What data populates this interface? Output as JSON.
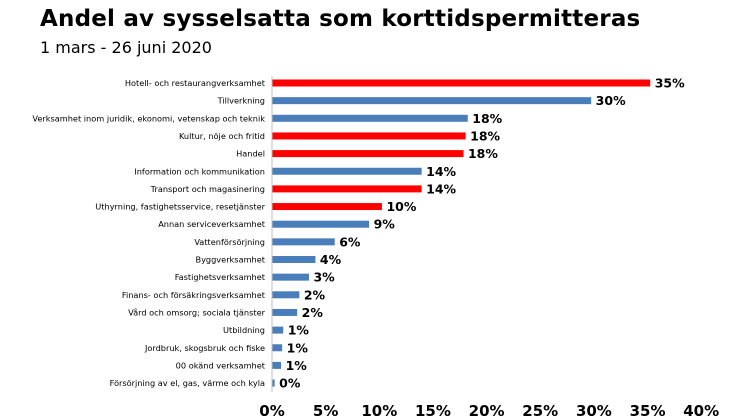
{
  "chart_data": {
    "type": "bar",
    "orientation": "horizontal",
    "title": "Andel av sysselsatta som korttidspermitteras",
    "subtitle": "1 mars - 26 juni 2020",
    "xlabel": "",
    "ylabel": "",
    "xlim": [
      0,
      40
    ],
    "xticks": [
      "0%",
      "5%",
      "10%",
      "15%",
      "20%",
      "25%",
      "30%",
      "35%",
      "40%"
    ],
    "grid": false,
    "colors": {
      "highlight": "#ff0000",
      "normal": "#4a7ebb"
    },
    "bars": [
      {
        "category": "Hotell- och restaurangverksamhet",
        "value": 35.2,
        "label": "35%",
        "highlight": true
      },
      {
        "category": "Tillverkning",
        "value": 29.7,
        "label": "30%",
        "highlight": false
      },
      {
        "category": "Verksamhet inom juridik, ekonomi, vetenskap och teknik",
        "value": 18.2,
        "label": "18%",
        "highlight": false
      },
      {
        "category": "Kultur, nöje och fritid",
        "value": 18.0,
        "label": "18%",
        "highlight": true
      },
      {
        "category": "Handel",
        "value": 17.8,
        "label": "18%",
        "highlight": true
      },
      {
        "category": "Information och kommunikation",
        "value": 13.9,
        "label": "14%",
        "highlight": false
      },
      {
        "category": "Transport och magasinering",
        "value": 13.9,
        "label": "14%",
        "highlight": true
      },
      {
        "category": "Uthyrning, fastighetsservice, resetjänster",
        "value": 10.2,
        "label": "10%",
        "highlight": true
      },
      {
        "category": "Annan serviceverksamhet",
        "value": 9.0,
        "label": "9%",
        "highlight": false
      },
      {
        "category": "Vattenförsörjning",
        "value": 5.8,
        "label": "6%",
        "highlight": false
      },
      {
        "category": "Byggverksamhet",
        "value": 4.0,
        "label": "4%",
        "highlight": false
      },
      {
        "category": "Fastighetsverksamhet",
        "value": 3.4,
        "label": "3%",
        "highlight": false
      },
      {
        "category": "Finans- och försäkringsverksamhet",
        "value": 2.5,
        "label": "2%",
        "highlight": false
      },
      {
        "category": "Vård och omsorg; sociala tjänster",
        "value": 2.3,
        "label": "2%",
        "highlight": false
      },
      {
        "category": "Utbildning",
        "value": 1.0,
        "label": "1%",
        "highlight": false
      },
      {
        "category": "Jordbruk, skogsbruk och fiske",
        "value": 0.9,
        "label": "1%",
        "highlight": false
      },
      {
        "category": "00 okänd verksamhet",
        "value": 0.8,
        "label": "1%",
        "highlight": false
      },
      {
        "category": "Försörjning av el, gas, värme och kyla",
        "value": 0.2,
        "label": "0%",
        "highlight": false
      }
    ]
  }
}
